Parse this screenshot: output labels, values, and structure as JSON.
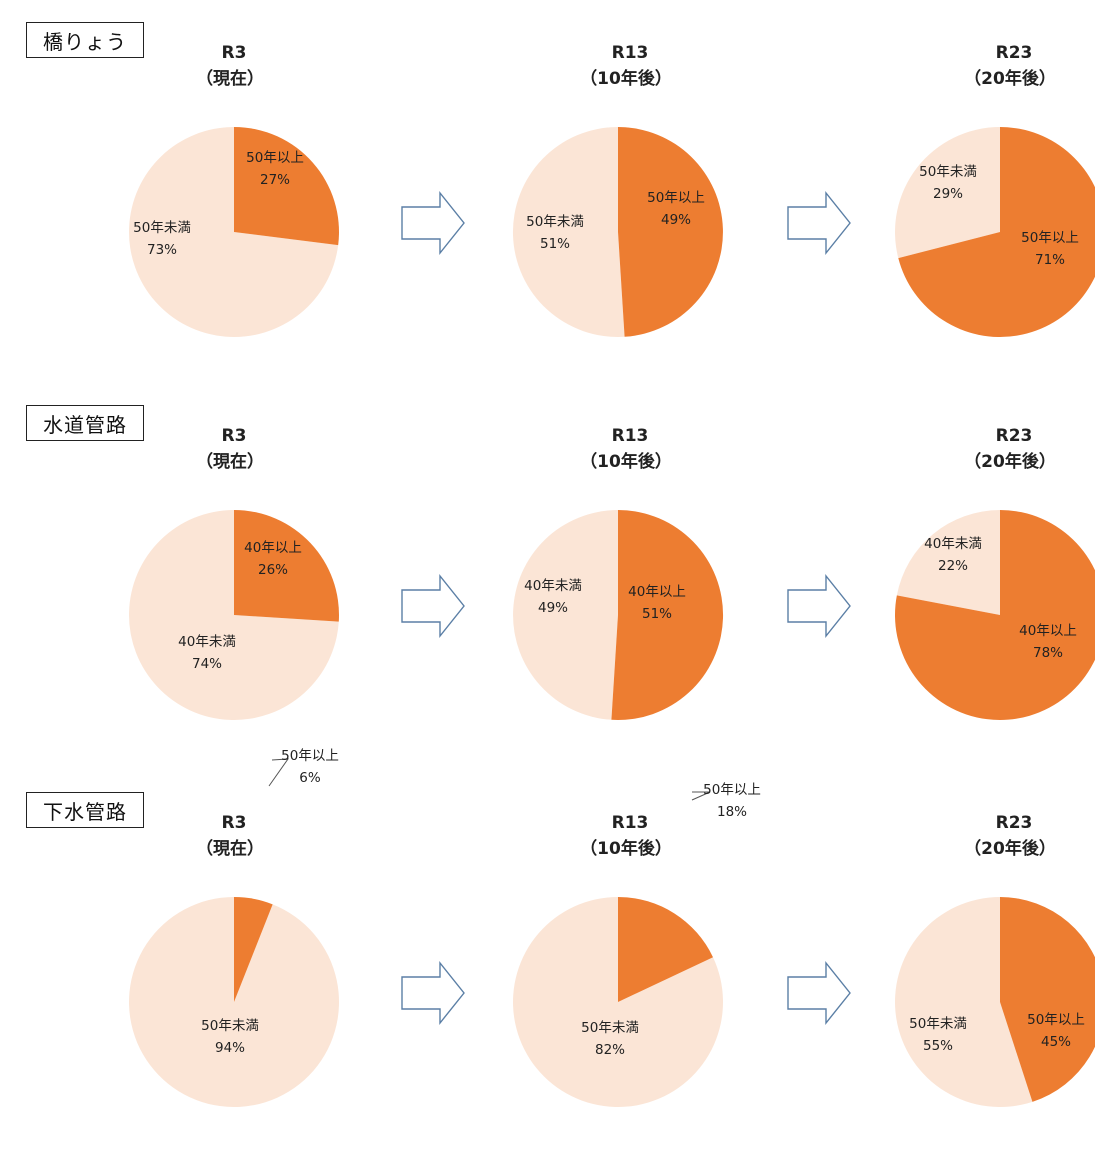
{
  "colors": {
    "old": "#ED7D31",
    "young": "#FBE5D6",
    "arrow": "#5B7FA6"
  },
  "chart_data": [
    {
      "type": "pie",
      "section": "橋りょう",
      "charts": [
        {
          "title_line1": "R3",
          "title_line2": "（現在）",
          "slices": [
            {
              "label": "50年以上",
              "value": 27
            },
            {
              "label": "50年未満",
              "value": 73
            }
          ]
        },
        {
          "title_line1": "R13",
          "title_line2": "（10年後）",
          "slices": [
            {
              "label": "50年以上",
              "value": 49
            },
            {
              "label": "50年未満",
              "value": 51
            }
          ]
        },
        {
          "title_line1": "R23",
          "title_line2": "（20年後）",
          "slices": [
            {
              "label": "50年以上",
              "value": 71
            },
            {
              "label": "50年未満",
              "value": 29
            }
          ]
        }
      ]
    },
    {
      "type": "pie",
      "section": "水道管路",
      "charts": [
        {
          "title_line1": "R3",
          "title_line2": "（現在）",
          "slices": [
            {
              "label": "40年以上",
              "value": 26
            },
            {
              "label": "40年未満",
              "value": 74
            }
          ]
        },
        {
          "title_line1": "R13",
          "title_line2": "（10年後）",
          "slices": [
            {
              "label": "40年以上",
              "value": 51
            },
            {
              "label": "40年未満",
              "value": 49
            }
          ]
        },
        {
          "title_line1": "R23",
          "title_line2": "（20年後）",
          "slices": [
            {
              "label": "40年以上",
              "value": 78
            },
            {
              "label": "40年未満",
              "value": 22
            }
          ]
        }
      ]
    },
    {
      "type": "pie",
      "section": "下水管路",
      "charts": [
        {
          "title_line1": "R3",
          "title_line2": "（現在）",
          "slices": [
            {
              "label": "50年以上",
              "value": 6
            },
            {
              "label": "50年未満",
              "value": 94
            }
          ]
        },
        {
          "title_line1": "R13",
          "title_line2": "（10年後）",
          "slices": [
            {
              "label": "50年以上",
              "value": 18
            },
            {
              "label": "50年未満",
              "value": 82
            }
          ]
        },
        {
          "title_line1": "R23",
          "title_line2": "（20年後）",
          "slices": [
            {
              "label": "50年以上",
              "value": 45
            },
            {
              "label": "50年未満",
              "value": 55
            }
          ]
        }
      ]
    }
  ]
}
